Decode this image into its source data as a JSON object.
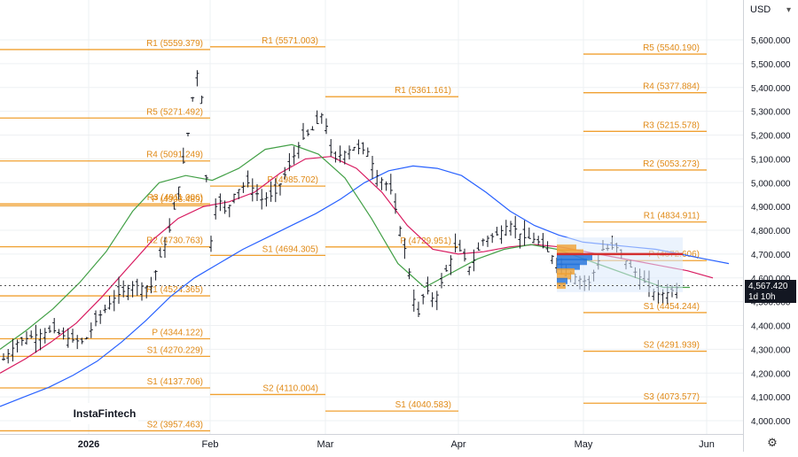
{
  "currency": "USD",
  "logo_text": "InstaFintech",
  "last_price": "4,567.420",
  "countdown": "1d 10h",
  "chart_data": {
    "type": "candlestick",
    "ylim": [
      3950,
      5700
    ],
    "grid": true,
    "y_ticks": [
      "4,000.000",
      "4,100.000",
      "4,200.000",
      "4,300.000",
      "4,400.000",
      "4,500.000",
      "4,600.000",
      "4,700.000",
      "4,800.000",
      "4,900.000",
      "5,000.000",
      "5,100.000",
      "5,200.000",
      "5,300.000",
      "5,400.000",
      "5,500.000",
      "5,600.000"
    ],
    "x_ticks": [
      "2026",
      "Feb",
      "Mar",
      "Apr",
      "May",
      "Jun"
    ],
    "pivot_levels": [
      {
        "label": "R1 (5559.379)",
        "value": 5559.379,
        "period": 0
      },
      {
        "label": "R5 (5271.492)",
        "value": 5271.492,
        "period": 0
      },
      {
        "label": "R4 (5091.249)",
        "value": 5091.249,
        "period": 0
      },
      {
        "label": "P (4903.489)",
        "value": 4903.489,
        "period": 0
      },
      {
        "label": "R3 (4911.006)",
        "value": 4911.006,
        "period": 0
      },
      {
        "label": "R2 (4730.763)",
        "value": 4730.763,
        "period": 0
      },
      {
        "label": "R1 (4524.365)",
        "value": 4524.365,
        "period": 0
      },
      {
        "label": "P (4344.122)",
        "value": 4344.122,
        "period": 0
      },
      {
        "label": "S1 (4270.229)",
        "value": 4270.229,
        "period": 0
      },
      {
        "label": "S1 (4137.706)",
        "value": 4137.706,
        "period": 0
      },
      {
        "label": "S2 (3957.463)",
        "value": 3957.463,
        "period": 0
      },
      {
        "label": "R1 (5571.003)",
        "value": 5571.003,
        "period": 1
      },
      {
        "label": "P (4985.702)",
        "value": 4985.702,
        "period": 1
      },
      {
        "label": "S1 (4694.305)",
        "value": 4694.305,
        "period": 1
      },
      {
        "label": "S2 (4110.004)",
        "value": 4110.004,
        "period": 1
      },
      {
        "label": "R1 (5361.161)",
        "value": 5361.161,
        "period": 2
      },
      {
        "label": "P (4729.951)",
        "value": 4729.951,
        "period": 2
      },
      {
        "label": "S1 (4040.583)",
        "value": 4040.583,
        "period": 2
      },
      {
        "label": "R5 (5540.190)",
        "value": 5540.19,
        "period": 3
      },
      {
        "label": "R4 (5377.884)",
        "value": 5377.884,
        "period": 3
      },
      {
        "label": "R3 (5215.578)",
        "value": 5215.578,
        "period": 3
      },
      {
        "label": "R2 (5053.273)",
        "value": 5053.273,
        "period": 3
      },
      {
        "label": "R1 (4834.911)",
        "value": 4834.911,
        "period": 3
      },
      {
        "label": "P (4672.606)",
        "value": 4672.606,
        "period": 3
      },
      {
        "label": "S1 (4454.244)",
        "value": 4454.244,
        "period": 3
      },
      {
        "label": "S2 (4291.939)",
        "value": 4291.939,
        "period": 3
      },
      {
        "label": "S3 (4073.577)",
        "value": 4073.577,
        "period": 3
      }
    ],
    "series": [
      {
        "name": "",
        "color": "#2962ff",
        "values": [
          4060,
          4100,
          4140,
          4190,
          4250,
          4330,
          4420,
          4520,
          4600,
          4660,
          4720,
          4770,
          4820,
          4870,
          4930,
          5000,
          5050,
          5070,
          5060,
          5030,
          4960,
          4880,
          4820,
          4780,
          4750,
          4740,
          4730,
          4720,
          4700,
          4680,
          4660
        ]
      },
      {
        "name": "",
        "color": "#d81b60",
        "values": [
          4200,
          4260,
          4330,
          4410,
          4520,
          4640,
          4760,
          4850,
          4900,
          4920,
          4960,
          5040,
          5100,
          5110,
          5060,
          4960,
          4820,
          4720,
          4700,
          4710,
          4730,
          4740,
          4730,
          4710,
          4690,
          4670,
          4650,
          4630,
          4600
        ]
      },
      {
        "name": "",
        "color": "#43a047",
        "values": [
          4300,
          4380,
          4470,
          4580,
          4710,
          4880,
          5000,
          5030,
          5010,
          5060,
          5140,
          5160,
          5120,
          5020,
          4850,
          4660,
          4560,
          4620,
          4680,
          4720,
          4740,
          4720,
          4680,
          4640,
          4600,
          4560,
          4560
        ]
      }
    ]
  }
}
